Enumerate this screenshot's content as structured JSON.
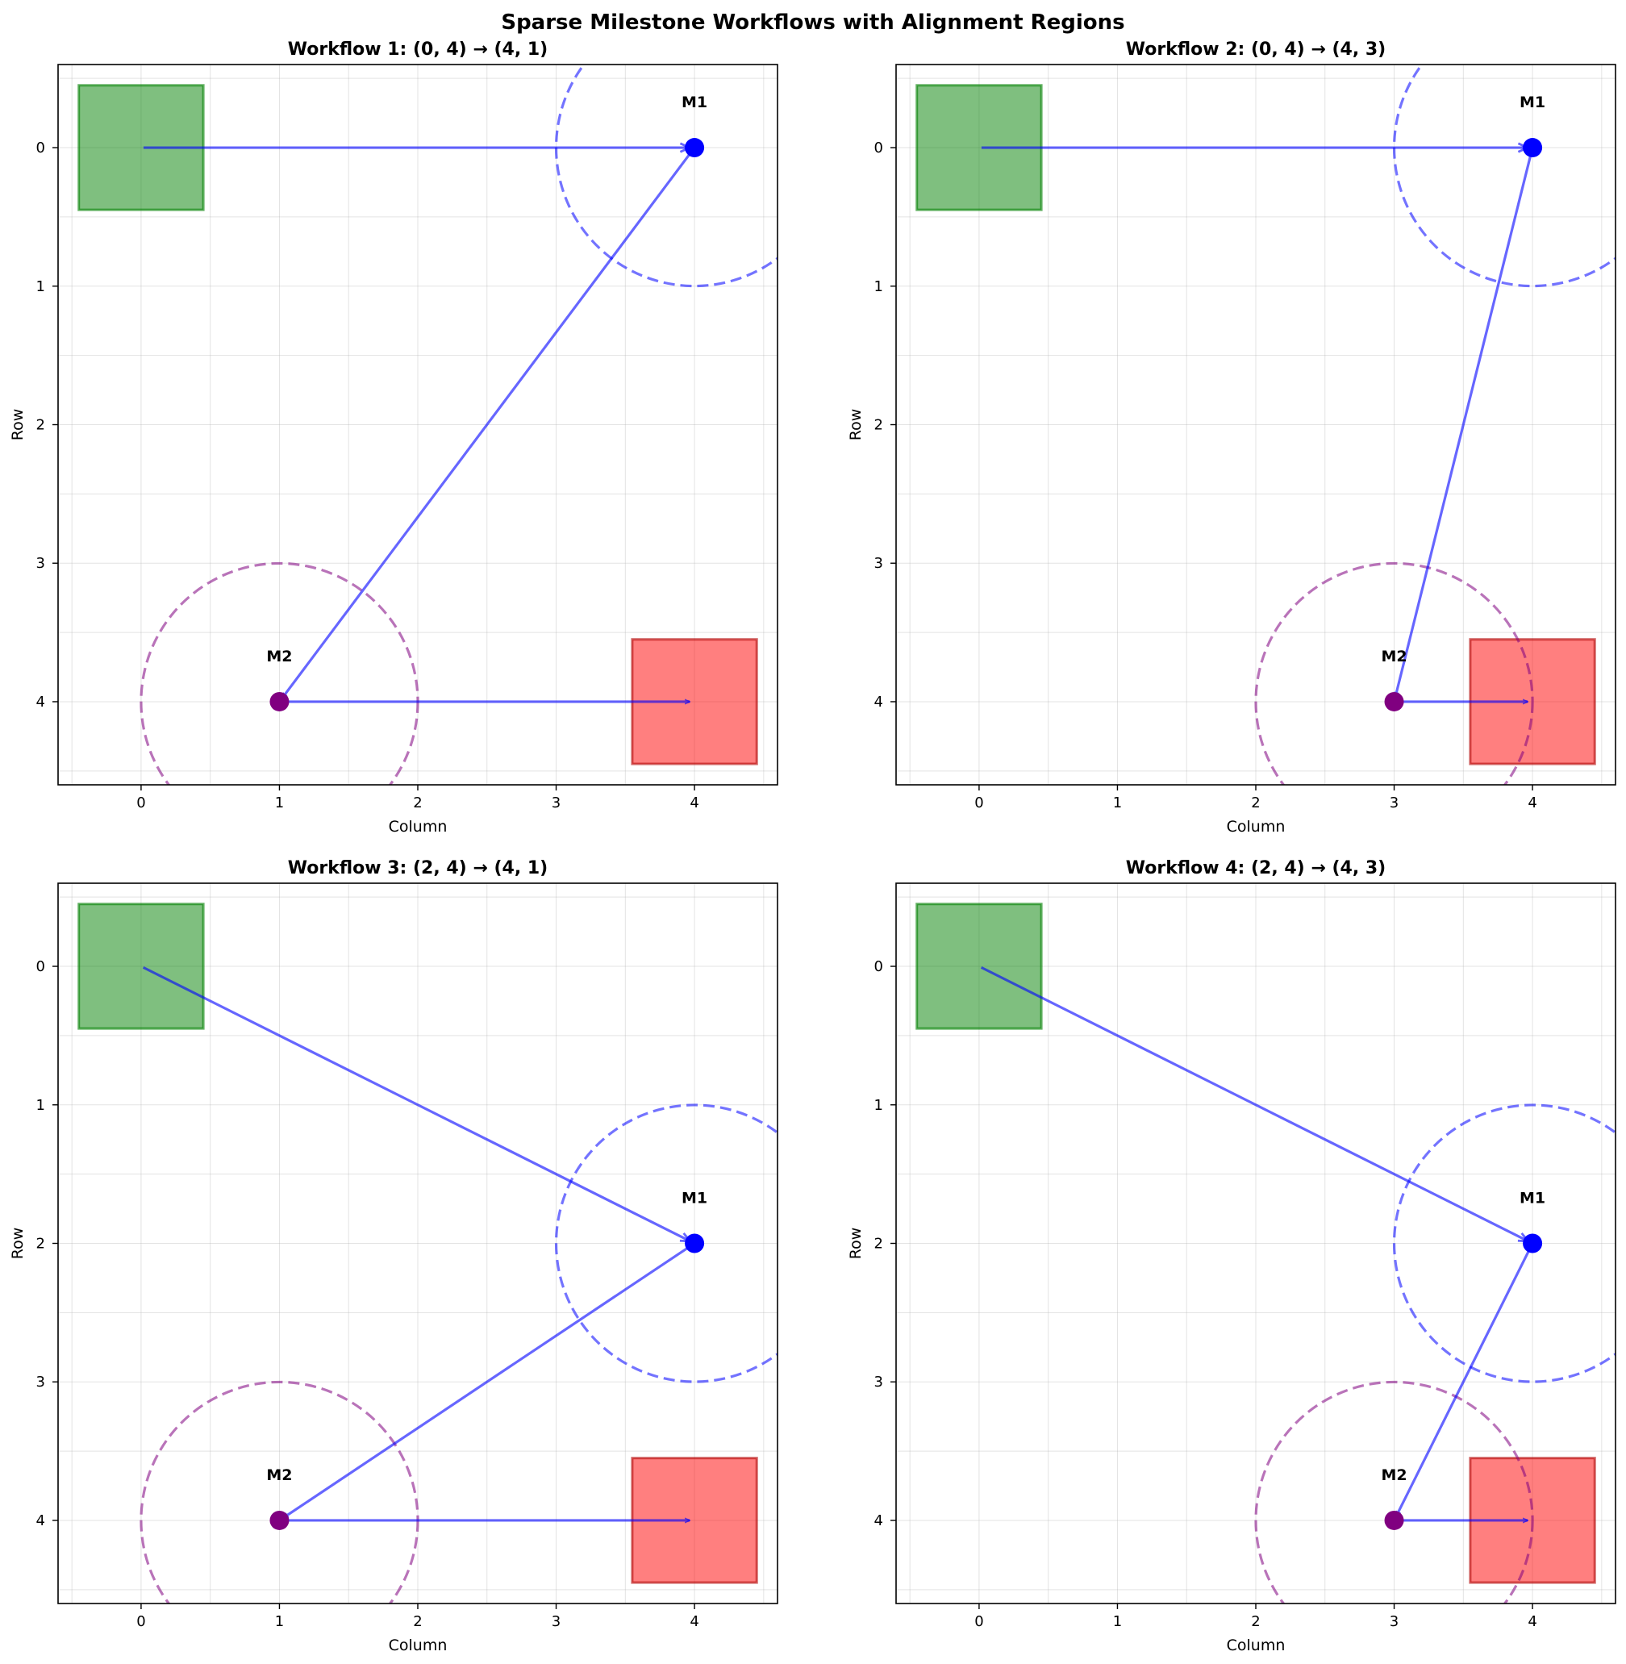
{
  "figure_title": "Sparse Milestone Workflows with Alignment Regions",
  "colors": {
    "start": "#008000",
    "goal": "#ff0000",
    "milestone_1": "#0000ff",
    "milestone_2": "#800080",
    "path": "#0000ff",
    "grid": "#b0b0b0"
  },
  "chart_data": [
    {
      "type": "scatter",
      "title": "Workflow 1: (0, 4) → (4, 1)",
      "xlabel": "Column",
      "ylabel": "Row",
      "xlim": [
        -0.6,
        4.6
      ],
      "ylim": [
        4.6,
        -0.6
      ],
      "y_inverted": true,
      "grid": true,
      "x_ticks": [
        0,
        1,
        2,
        3,
        4
      ],
      "y_ticks": [
        0,
        1,
        2,
        3,
        4
      ],
      "start": {
        "col": 0,
        "row": 0
      },
      "goal": {
        "col": 4,
        "row": 4
      },
      "milestones": [
        {
          "label": "M1",
          "col": 4,
          "row": 0,
          "region_radius": 1,
          "color": "#0000ff"
        },
        {
          "label": "M2",
          "col": 1,
          "row": 4,
          "region_radius": 1,
          "color": "#800080"
        }
      ],
      "path": [
        [
          0,
          0
        ],
        [
          4,
          0
        ],
        [
          1,
          4
        ],
        [
          4,
          4
        ]
      ]
    },
    {
      "type": "scatter",
      "title": "Workflow 2: (0, 4) → (4, 3)",
      "xlabel": "Column",
      "ylabel": "Row",
      "xlim": [
        -0.6,
        4.6
      ],
      "ylim": [
        4.6,
        -0.6
      ],
      "y_inverted": true,
      "grid": true,
      "x_ticks": [
        0,
        1,
        2,
        3,
        4
      ],
      "y_ticks": [
        0,
        1,
        2,
        3,
        4
      ],
      "start": {
        "col": 0,
        "row": 0
      },
      "goal": {
        "col": 4,
        "row": 4
      },
      "milestones": [
        {
          "label": "M1",
          "col": 4,
          "row": 0,
          "region_radius": 1,
          "color": "#0000ff"
        },
        {
          "label": "M2",
          "col": 3,
          "row": 4,
          "region_radius": 1,
          "color": "#800080"
        }
      ],
      "path": [
        [
          0,
          0
        ],
        [
          4,
          0
        ],
        [
          3,
          4
        ],
        [
          4,
          4
        ]
      ]
    },
    {
      "type": "scatter",
      "title": "Workflow 3: (2, 4) → (4, 1)",
      "xlabel": "Column",
      "ylabel": "Row",
      "xlim": [
        -0.6,
        4.6
      ],
      "ylim": [
        4.6,
        -0.6
      ],
      "y_inverted": true,
      "grid": true,
      "x_ticks": [
        0,
        1,
        2,
        3,
        4
      ],
      "y_ticks": [
        0,
        1,
        2,
        3,
        4
      ],
      "start": {
        "col": 0,
        "row": 0
      },
      "goal": {
        "col": 4,
        "row": 4
      },
      "milestones": [
        {
          "label": "M1",
          "col": 4,
          "row": 2,
          "region_radius": 1,
          "color": "#0000ff"
        },
        {
          "label": "M2",
          "col": 1,
          "row": 4,
          "region_radius": 1,
          "color": "#800080"
        }
      ],
      "path": [
        [
          0,
          0
        ],
        [
          4,
          2
        ],
        [
          1,
          4
        ],
        [
          4,
          4
        ]
      ]
    },
    {
      "type": "scatter",
      "title": "Workflow 4: (2, 4) → (4, 3)",
      "xlabel": "Column",
      "ylabel": "Row",
      "xlim": [
        -0.6,
        4.6
      ],
      "ylim": [
        4.6,
        -0.6
      ],
      "y_inverted": true,
      "grid": true,
      "x_ticks": [
        0,
        1,
        2,
        3,
        4
      ],
      "y_ticks": [
        0,
        1,
        2,
        3,
        4
      ],
      "start": {
        "col": 0,
        "row": 0
      },
      "goal": {
        "col": 4,
        "row": 4
      },
      "milestones": [
        {
          "label": "M1",
          "col": 4,
          "row": 2,
          "region_radius": 1,
          "color": "#0000ff"
        },
        {
          "label": "M2",
          "col": 3,
          "row": 4,
          "region_radius": 1,
          "color": "#800080"
        }
      ],
      "path": [
        [
          0,
          0
        ],
        [
          4,
          2
        ],
        [
          3,
          4
        ],
        [
          4,
          4
        ]
      ]
    }
  ]
}
